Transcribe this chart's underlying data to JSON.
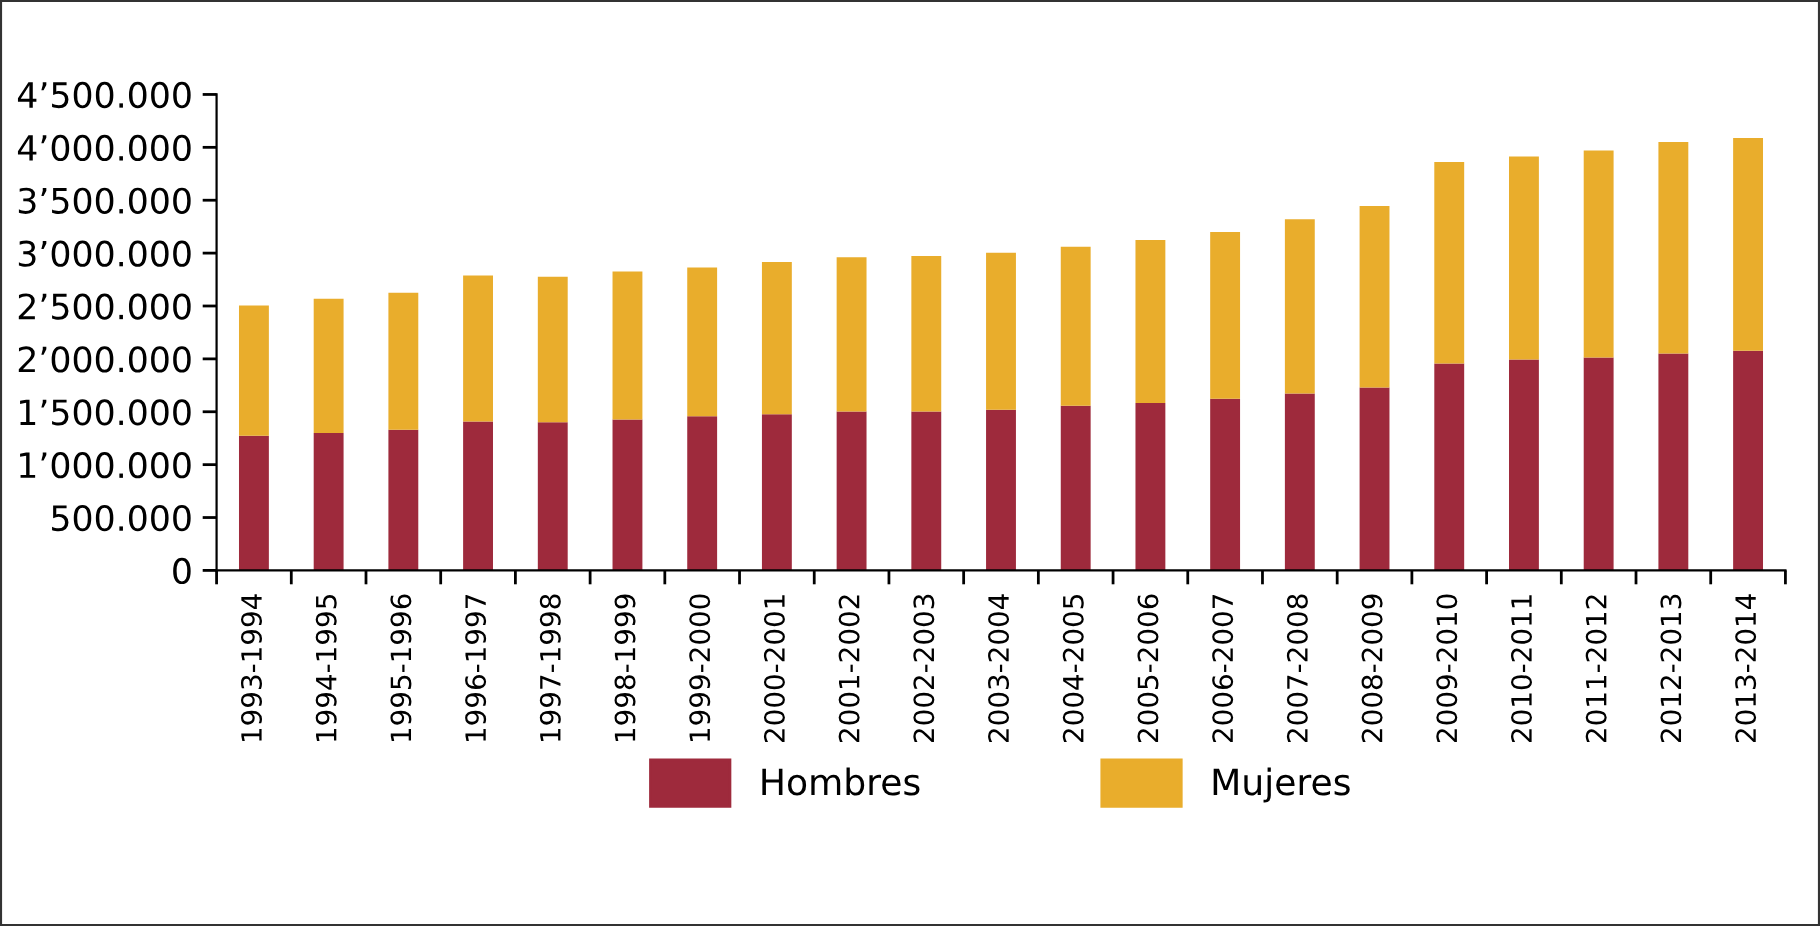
{
  "chart_data": {
    "type": "bar",
    "stacked": true,
    "categories": [
      "1993-1994",
      "1994-1995",
      "1995-1996",
      "1996-1997",
      "1997-1998",
      "1998-1999",
      "1999-2000",
      "2000-2001",
      "2001-2002",
      "2002-2003",
      "2003-2004",
      "2004-2005",
      "2005-2006",
      "2006-2007",
      "2007-2008",
      "2008-2009",
      "2009-2010",
      "2010-2011",
      "2011-2012",
      "2012-2013",
      "2013-2014"
    ],
    "series": [
      {
        "name": "Hombres",
        "color": "#9e2a3c",
        "values": [
          1274000,
          1300000,
          1331000,
          1407000,
          1401000,
          1426000,
          1458000,
          1477000,
          1502000,
          1502000,
          1520000,
          1558000,
          1584000,
          1622000,
          1672000,
          1729000,
          1956000,
          1994000,
          2012000,
          2050000,
          2077000
        ]
      },
      {
        "name": "Mujeres",
        "color": "#e9ad2c",
        "values": [
          1231000,
          1269000,
          1295000,
          1382000,
          1376000,
          1401000,
          1406000,
          1438000,
          1458000,
          1470000,
          1484000,
          1503000,
          1540000,
          1577000,
          1647000,
          1717000,
          1906000,
          1919000,
          1958000,
          2001000,
          2012000
        ]
      }
    ],
    "ylim": [
      0,
      4500000
    ],
    "yticks": [
      0,
      {
        "value": 500000,
        "label": "500.000"
      },
      {
        "value": 1000000,
        "label": "1’000.000"
      },
      {
        "value": 1500000,
        "label": "1’500.000"
      },
      {
        "value": 2000000,
        "label": "2’000.000"
      },
      {
        "value": 2500000,
        "label": "2’500.000"
      },
      {
        "value": 3000000,
        "label": "3’000.000"
      },
      {
        "value": 3500000,
        "label": "3’500.000"
      },
      {
        "value": 4000000,
        "label": "4’000.000"
      },
      {
        "value": 4500000,
        "label": "4’500.000"
      }
    ],
    "grid": false,
    "legend": "bottom"
  }
}
